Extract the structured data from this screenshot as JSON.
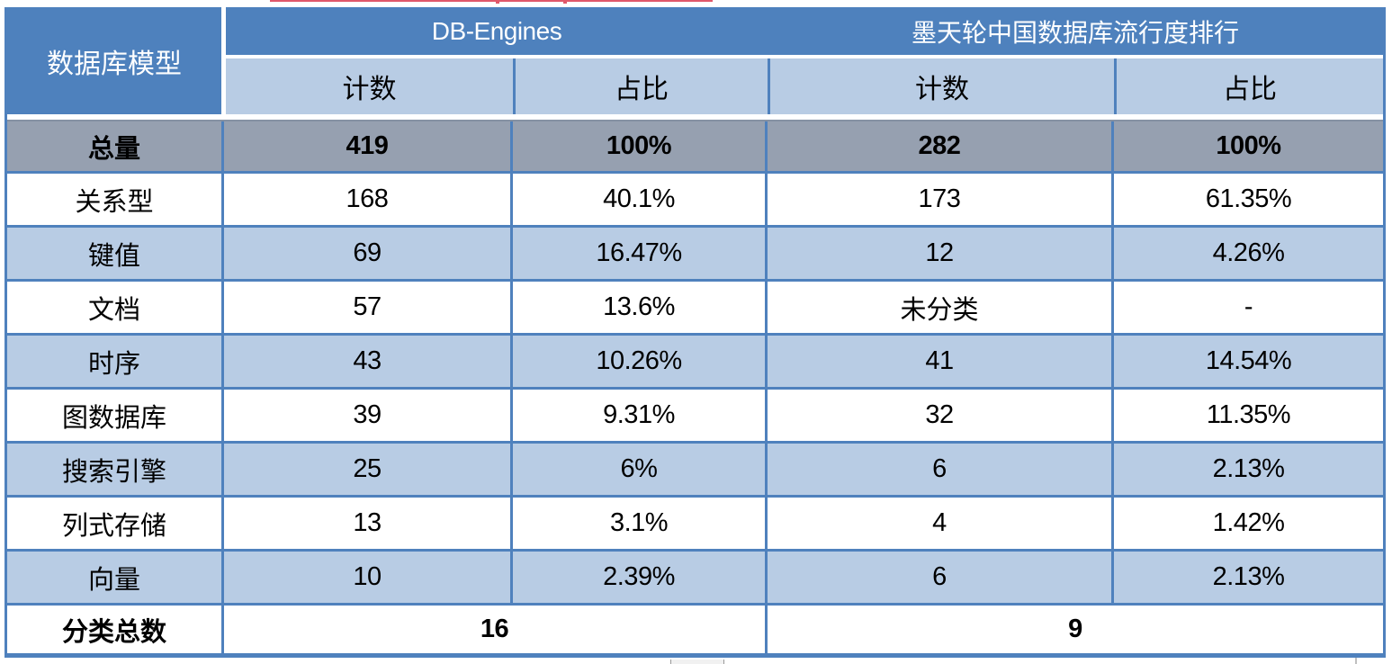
{
  "chart_data": {
    "type": "table",
    "title": "",
    "column_group_row": [
      "数据库模型",
      "DB-Engines",
      "墨天轮中国数据库流行度排行"
    ],
    "sub_headers": [
      "计数",
      "占比",
      "计数",
      "占比"
    ],
    "rows": [
      [
        "总量",
        "419",
        "100%",
        "282",
        "100%"
      ],
      [
        "关系型",
        "168",
        "40.1%",
        "173",
        "61.35%"
      ],
      [
        "键值",
        "69",
        "16.47%",
        "12",
        "4.26%"
      ],
      [
        "文档",
        "57",
        "13.6%",
        "未分类",
        "-"
      ],
      [
        "时序",
        "43",
        "10.26%",
        "41",
        "14.54%"
      ],
      [
        "图数据库",
        "39",
        "9.31%",
        "32",
        "11.35%"
      ],
      [
        "搜索引擎",
        "25",
        "6%",
        "6",
        "2.13%"
      ],
      [
        "列式存储",
        "13",
        "3.1%",
        "4",
        "1.42%"
      ],
      [
        "向量",
        "10",
        "2.39%",
        "6",
        "2.13%"
      ],
      [
        "分类总数",
        "16",
        "",
        "9",
        ""
      ]
    ],
    "notes": "分类总数 row: 16 spans both DB-Engines columns, 9 spans both 墨天轮 columns"
  },
  "table": {
    "corner_header": "数据库模型",
    "group_headers": {
      "db_engines": "DB-Engines",
      "motianlun": "墨天轮中国数据库流行度排行"
    },
    "sub_headers": [
      "计数",
      "占比",
      "计数",
      "占比"
    ],
    "rows": [
      {
        "label": "总量",
        "values": [
          "419",
          "100%",
          "282",
          "100%"
        ]
      },
      {
        "label": "关系型",
        "values": [
          "168",
          "40.1%",
          "173",
          "61.35%"
        ]
      },
      {
        "label": "键值",
        "values": [
          "69",
          "16.47%",
          "12",
          "4.26%"
        ]
      },
      {
        "label": "文档",
        "values": [
          "57",
          "13.6%",
          "未分类",
          "-"
        ]
      },
      {
        "label": "时序",
        "values": [
          "43",
          "10.26%",
          "41",
          "14.54%"
        ]
      },
      {
        "label": "图数据库",
        "values": [
          "39",
          "9.31%",
          "32",
          "11.35%"
        ]
      },
      {
        "label": "搜索引擎",
        "values": [
          "25",
          "6%",
          "6",
          "2.13%"
        ]
      },
      {
        "label": "列式存储",
        "values": [
          "13",
          "3.1%",
          "4",
          "1.42%"
        ]
      },
      {
        "label": "向量",
        "values": [
          "10",
          "2.39%",
          "6",
          "2.13%"
        ]
      }
    ],
    "footer": {
      "label": "分类总数",
      "db_engines_total": "16",
      "motianlun_total": "9"
    }
  },
  "colors": {
    "header_blue": "#4E81BD",
    "subheader_light_blue": "#B8CCE4",
    "total_row_gray": "#96A0B0",
    "grid_border_blue": "#4F81BD",
    "artifact_red": "#E0586A"
  }
}
